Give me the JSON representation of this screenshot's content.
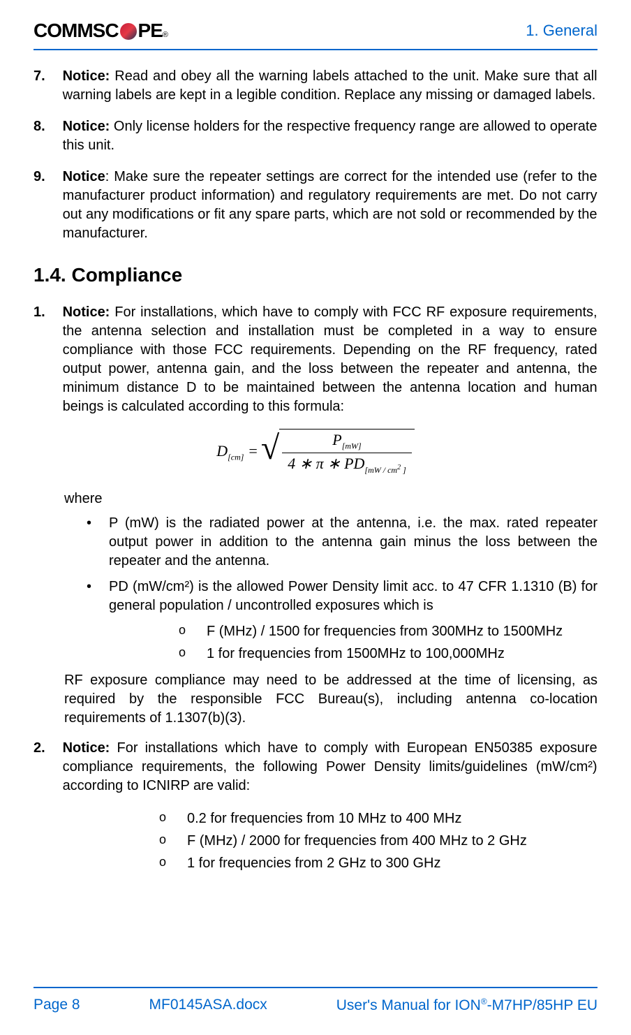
{
  "header": {
    "logo_text_comm": "COMMSC",
    "logo_text_pe": "PE",
    "logo_reg": "®",
    "section_label": "1. General"
  },
  "items_first": [
    {
      "num": "7.",
      "label": "Notice:",
      "text": " Read and obey all the warning labels attached to the unit. Make sure that all warning labels are kept in a legible condition. Replace any missing or damaged labels."
    },
    {
      "num": "8.",
      "label": "Notice:",
      "text": " Only license holders for the respective frequency range are allowed to operate this unit."
    },
    {
      "num": "9.",
      "label": "Notice",
      "text": ": Make sure the repeater settings are correct for the intended use (refer to the manufacturer product information) and regulatory requirements are met. Do not carry out any modifications or fit any spare parts, which are not sold or recommended by the manufacturer."
    }
  ],
  "section_heading": "1.4. Compliance",
  "compliance": {
    "item1": {
      "num": "1.",
      "label": "Notice:",
      "text": " For installations, which have to comply with FCC RF exposure requirements, the antenna selection and installation must be completed in a way to ensure compliance with those FCC requirements. Depending on the RF frequency, rated output power, antenna gain, and the loss between the repeater and antenna, the minimum distance D to be maintained between the antenna location and human beings is calculated according to this formula:"
    },
    "formula": {
      "d_var": "D",
      "d_sub": "[cm]",
      "equals": " = ",
      "p_var": "P",
      "p_sub": "[mW]",
      "denom_prefix": "4 ∗ π ∗ ",
      "pd_var": "PD",
      "pd_sub_prefix": "[mW / cm",
      "pd_sup": "2",
      "pd_sub_suffix": " ]"
    },
    "where_label": "where",
    "bullets": [
      "P (mW) is the radiated power at the antenna, i.e. the max. rated repeater output power in addition to the antenna gain minus the loss between the repeater and the antenna.",
      "PD (mW/cm²) is the allowed Power Density limit acc. to 47 CFR 1.1310 (B) for general population / uncontrolled exposures which is"
    ],
    "sublist1": [
      "F (MHz) / 1500 for frequencies from 300MHz to 1500MHz",
      "1 for frequencies from 1500MHz to 100,000MHz"
    ],
    "rf_para": "RF exposure compliance may need to be addressed at the time of licensing, as required by the responsible FCC Bureau(s), including antenna co-location requirements of 1.1307(b)(3).",
    "item2": {
      "num": "2.",
      "label": "Notice:",
      "text": " For installations which have to comply with European EN50385 exposure compliance requirements, the following Power Density limits/guidelines (mW/cm²) according to ICNIRP are valid:"
    },
    "sublist2": [
      "0.2 for frequencies from 10 MHz to 400 MHz",
      "F (MHz) / 2000 for frequencies from 400 MHz to 2 GHz",
      "1 for frequencies from 2 GHz to 300 GHz"
    ]
  },
  "footer": {
    "page": "Page 8",
    "doc": "MF0145ASA.docx",
    "manual_prefix": "User's Manual for ION",
    "manual_reg": "®",
    "manual_suffix": "-M7HP/85HP EU"
  },
  "colors": {
    "accent": "#0066cc",
    "text": "#000000",
    "background": "#ffffff"
  }
}
